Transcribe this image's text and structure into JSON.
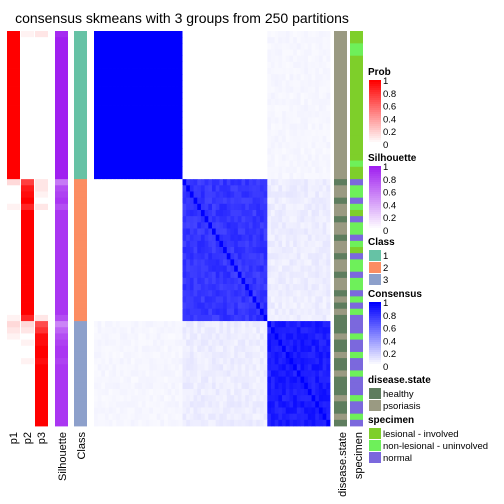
{
  "chart_data": {
    "type": "heatmap",
    "title": "consensus skmeans with 3 groups from 250 partitions",
    "n_samples": 64,
    "group_sizes": [
      24,
      23,
      17
    ],
    "class_per_sample": [
      1,
      1,
      1,
      1,
      1,
      1,
      1,
      1,
      1,
      1,
      1,
      1,
      1,
      1,
      1,
      1,
      1,
      1,
      1,
      1,
      1,
      1,
      1,
      1,
      2,
      2,
      2,
      2,
      2,
      2,
      2,
      2,
      2,
      2,
      2,
      2,
      2,
      2,
      2,
      2,
      2,
      2,
      2,
      2,
      2,
      2,
      2,
      3,
      3,
      3,
      3,
      3,
      3,
      3,
      3,
      3,
      3,
      3,
      3,
      3,
      3,
      3,
      3,
      3
    ],
    "membership_probabilities": {
      "p1": [
        1,
        1,
        1,
        1,
        1,
        1,
        1,
        1,
        1,
        1,
        1,
        1,
        1,
        1,
        1,
        1,
        1,
        1,
        1,
        1,
        1,
        1,
        1,
        1,
        0.15,
        0,
        0,
        0,
        0.05,
        0,
        0,
        0,
        0,
        0,
        0,
        0,
        0,
        0,
        0,
        0,
        0,
        0,
        0,
        0,
        0,
        0,
        0.05,
        0.15,
        0.1,
        0.05,
        0,
        0,
        0,
        0,
        0,
        0,
        0,
        0,
        0,
        0,
        0,
        0,
        0,
        0
      ],
      "p2": [
        0.05,
        0,
        0,
        0,
        0,
        0,
        0,
        0,
        0,
        0,
        0,
        0,
        0,
        0,
        0,
        0,
        0,
        0,
        0,
        0,
        0,
        0,
        0,
        0,
        0.75,
        0.9,
        0.95,
        1,
        0.85,
        1,
        1,
        1,
        1,
        1,
        1,
        1,
        1,
        1,
        1,
        1,
        1,
        1,
        1,
        1,
        1,
        1,
        0.85,
        0.15,
        0.1,
        0,
        0.05,
        0,
        0,
        0.05,
        0,
        0,
        0,
        0,
        0,
        0,
        0,
        0,
        0,
        0
      ],
      "p3": [
        0.1,
        0,
        0,
        0,
        0,
        0,
        0,
        0,
        0,
        0,
        0,
        0,
        0,
        0,
        0,
        0,
        0,
        0,
        0,
        0,
        0,
        0,
        0,
        0,
        0.1,
        0.1,
        0.05,
        0,
        0.1,
        0,
        0,
        0,
        0,
        0,
        0,
        0,
        0,
        0,
        0,
        0,
        0,
        0,
        0,
        0,
        0,
        0,
        0.1,
        0.7,
        0.8,
        0.95,
        0.95,
        1,
        1,
        0.95,
        1,
        1,
        1,
        1,
        1,
        1,
        1,
        1,
        1,
        1
      ]
    },
    "silhouette": [
      0.95,
      1,
      1,
      1,
      1,
      1,
      1,
      1,
      1,
      1,
      1,
      1,
      1,
      1,
      1,
      1,
      1,
      1,
      1,
      1,
      1,
      1,
      1,
      1,
      0.6,
      0.8,
      0.85,
      0.9,
      0.8,
      0.9,
      0.9,
      0.9,
      0.9,
      0.9,
      0.9,
      0.9,
      0.9,
      0.9,
      0.9,
      0.9,
      0.9,
      0.9,
      0.9,
      0.9,
      0.9,
      0.9,
      0.8,
      0.55,
      0.7,
      0.8,
      0.85,
      0.9,
      0.9,
      0.85,
      0.9,
      0.9,
      0.9,
      0.9,
      0.9,
      0.9,
      0.9,
      0.9,
      0.9,
      0.9
    ],
    "disease_state": [
      "psoriasis",
      "psoriasis",
      "psoriasis",
      "psoriasis",
      "psoriasis",
      "psoriasis",
      "psoriasis",
      "psoriasis",
      "psoriasis",
      "psoriasis",
      "psoriasis",
      "psoriasis",
      "psoriasis",
      "psoriasis",
      "psoriasis",
      "psoriasis",
      "psoriasis",
      "psoriasis",
      "psoriasis",
      "psoriasis",
      "psoriasis",
      "psoriasis",
      "psoriasis",
      "psoriasis",
      "healthy",
      "psoriasis",
      "psoriasis",
      "healthy",
      "psoriasis",
      "psoriasis",
      "healthy",
      "psoriasis",
      "psoriasis",
      "healthy",
      "psoriasis",
      "psoriasis",
      "healthy",
      "psoriasis",
      "psoriasis",
      "healthy",
      "psoriasis",
      "psoriasis",
      "healthy",
      "psoriasis",
      "healthy",
      "psoriasis",
      "healthy",
      "healthy",
      "healthy",
      "psoriasis",
      "healthy",
      "healthy",
      "psoriasis",
      "healthy",
      "healthy",
      "psoriasis",
      "healthy",
      "healthy",
      "healthy",
      "psoriasis",
      "healthy",
      "healthy",
      "psoriasis",
      "healthy"
    ],
    "specimen": [
      "lesional - involved",
      "lesional - involved",
      "non-lesional - uninvolved",
      "non-lesional - uninvolved",
      "lesional - involved",
      "lesional - involved",
      "lesional - involved",
      "lesional - involved",
      "lesional - involved",
      "lesional - involved",
      "lesional - involved",
      "lesional - involved",
      "lesional - involved",
      "lesional - involved",
      "lesional - involved",
      "lesional - involved",
      "lesional - involved",
      "lesional - involved",
      "lesional - involved",
      "lesional - involved",
      "lesional - involved",
      "non-lesional - uninvolved",
      "lesional - involved",
      "lesional - involved",
      "normal",
      "non-lesional - uninvolved",
      "non-lesional - uninvolved",
      "normal",
      "non-lesional - uninvolved",
      "lesional - involved",
      "normal",
      "non-lesional - uninvolved",
      "non-lesional - uninvolved",
      "normal",
      "non-lesional - uninvolved",
      "lesional - involved",
      "normal",
      "non-lesional - uninvolved",
      "non-lesional - uninvolved",
      "normal",
      "non-lesional - uninvolved",
      "non-lesional - uninvolved",
      "normal",
      "non-lesional - uninvolved",
      "normal",
      "non-lesional - uninvolved",
      "normal",
      "normal",
      "normal",
      "non-lesional - uninvolved",
      "normal",
      "normal",
      "non-lesional - uninvolved",
      "normal",
      "normal",
      "non-lesional - uninvolved",
      "normal",
      "normal",
      "normal",
      "non-lesional - uninvolved",
      "normal",
      "normal",
      "non-lesional - uninvolved",
      "normal"
    ],
    "consensus_levels": {
      "within_group": [
        1.0,
        0.85,
        0.95
      ],
      "between_groups": [
        [
          1.0,
          0.0,
          0.05
        ],
        [
          0.0,
          0.85,
          0.1
        ],
        [
          0.05,
          0.1,
          0.95
        ]
      ]
    },
    "column_labels": [
      "p1",
      "p2",
      "p3",
      "Silhouette",
      "Class",
      "disease.state",
      "specimen"
    ],
    "legends": [
      {
        "title": "Prob",
        "ticks": [
          "1",
          "0.8",
          "0.6",
          "0.4",
          "0.2",
          "0"
        ],
        "range": [
          0,
          1
        ],
        "low_color": "#ffffff",
        "high_color": "#ff0000"
      },
      {
        "title": "Silhouette",
        "ticks": [
          "1",
          "0.8",
          "0.6",
          "0.4",
          "0.2",
          "0"
        ],
        "range": [
          0,
          1
        ],
        "low_color": "#ffffff",
        "high_color": "#a020f0"
      },
      {
        "title": "Class",
        "items": [
          {
            "label": "1",
            "color": "#66c2a5"
          },
          {
            "label": "2",
            "color": "#fc8d62"
          },
          {
            "label": "3",
            "color": "#8da0cb"
          }
        ]
      },
      {
        "title": "Consensus",
        "ticks": [
          "1",
          "0.8",
          "0.6",
          "0.4",
          "0.2",
          "0"
        ],
        "range": [
          0,
          1
        ],
        "low_color": "#ffffff",
        "high_color": "#0000ff"
      },
      {
        "title": "disease.state",
        "items": [
          {
            "label": "healthy",
            "color": "#5e7d5e"
          },
          {
            "label": "psoriasis",
            "color": "#9a9a82"
          }
        ]
      },
      {
        "title": "specimen",
        "items": [
          {
            "label": "lesional - involved",
            "color": "#7ecf2a"
          },
          {
            "label": "non-lesional - uninvolved",
            "color": "#6ef05a"
          },
          {
            "label": "normal",
            "color": "#7b68dd"
          }
        ]
      }
    ],
    "colors": {
      "prob_high": "#ff0000",
      "silhouette_high": "#a020f0",
      "consensus_high": "#0000ff"
    },
    "legend_placement": "right"
  }
}
